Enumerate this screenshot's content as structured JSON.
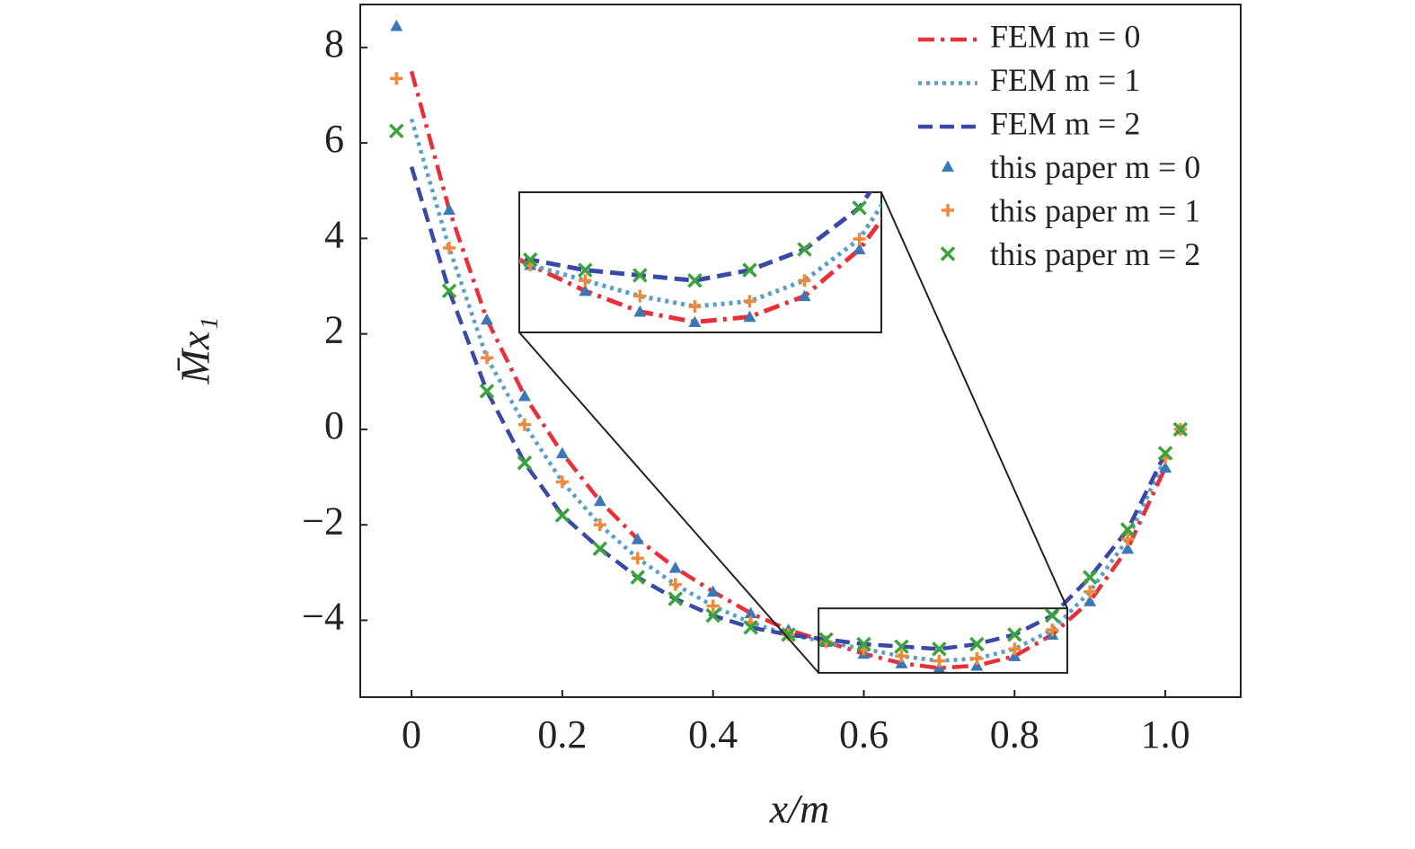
{
  "chart_data": {
    "type": "line",
    "xlabel": "x/m",
    "ylabel": "M̄x₁",
    "xlim": [
      -0.068,
      1.1
    ],
    "ylim": [
      -5.61,
      8.9
    ],
    "xticks": [
      0,
      0.2,
      0.4,
      0.6,
      0.8,
      {
        "value": 1,
        "label": "1.0"
      }
    ],
    "yticks": [
      {
        "value": -4,
        "label": "−4"
      },
      {
        "value": -2,
        "label": "−2"
      },
      0,
      2,
      4,
      6,
      8
    ],
    "legend": "upper right",
    "inset": {
      "xlim": [
        0.54,
        0.87
      ],
      "ylim": [
        -5.1,
        -3.75
      ]
    },
    "series": [
      {
        "name": "FEM m = 0",
        "color": "#e8303a",
        "style": "dashdot",
        "x": [
          0,
          0.05,
          0.1,
          0.15,
          0.2,
          0.25,
          0.3,
          0.35,
          0.4,
          0.45,
          0.5,
          0.55,
          0.6,
          0.65,
          0.7,
          0.75,
          0.8,
          0.85,
          0.9,
          0.95,
          1.0
        ],
        "values": [
          7.5,
          4.6,
          2.3,
          0.7,
          -0.5,
          -1.5,
          -2.3,
          -2.9,
          -3.4,
          -3.85,
          -4.2,
          -4.45,
          -4.7,
          -4.9,
          -5.0,
          -4.95,
          -4.75,
          -4.3,
          -3.6,
          -2.5,
          -0.8
        ]
      },
      {
        "name": "FEM m = 1",
        "color": "#5a9fc8",
        "style": "dotted",
        "x": [
          0,
          0.05,
          0.1,
          0.15,
          0.2,
          0.25,
          0.3,
          0.35,
          0.4,
          0.45,
          0.5,
          0.55,
          0.6,
          0.65,
          0.7,
          0.75,
          0.8,
          0.85,
          0.9,
          0.95,
          1.0
        ],
        "values": [
          6.5,
          3.8,
          1.5,
          0.1,
          -1.1,
          -2.0,
          -2.7,
          -3.25,
          -3.7,
          -4.05,
          -4.3,
          -4.45,
          -4.6,
          -4.75,
          -4.85,
          -4.8,
          -4.6,
          -4.2,
          -3.4,
          -2.3,
          -0.6
        ]
      },
      {
        "name": "FEM m = 2",
        "color": "#3a48a8",
        "style": "dashed",
        "x": [
          0,
          0.05,
          0.1,
          0.15,
          0.2,
          0.25,
          0.3,
          0.35,
          0.4,
          0.45,
          0.5,
          0.55,
          0.6,
          0.65,
          0.7,
          0.75,
          0.8,
          0.85,
          0.9,
          0.95,
          1.0
        ],
        "values": [
          5.5,
          2.9,
          0.8,
          -0.7,
          -1.8,
          -2.5,
          -3.1,
          -3.55,
          -3.9,
          -4.15,
          -4.3,
          -4.4,
          -4.5,
          -4.55,
          -4.6,
          -4.5,
          -4.3,
          -3.9,
          -3.1,
          -2.1,
          -0.5
        ]
      },
      {
        "name": "this paper m = 0",
        "color": "#3b78b5",
        "marker": "triangle",
        "x": [
          -0.02,
          0.05,
          0.1,
          0.15,
          0.2,
          0.25,
          0.3,
          0.35,
          0.4,
          0.45,
          0.5,
          0.55,
          0.6,
          0.65,
          0.7,
          0.75,
          0.8,
          0.85,
          0.9,
          0.95,
          1.0,
          1.02
        ],
        "values": [
          8.45,
          4.6,
          2.3,
          0.7,
          -0.5,
          -1.5,
          -2.3,
          -2.9,
          -3.4,
          -3.85,
          -4.2,
          -4.45,
          -4.7,
          -4.9,
          -5.0,
          -4.95,
          -4.75,
          -4.3,
          -3.6,
          -2.5,
          -0.8,
          0
        ]
      },
      {
        "name": "this paper m = 1",
        "color": "#f08a3a",
        "marker": "plus",
        "x": [
          -0.02,
          0.05,
          0.1,
          0.15,
          0.2,
          0.25,
          0.3,
          0.35,
          0.4,
          0.45,
          0.5,
          0.55,
          0.6,
          0.65,
          0.7,
          0.75,
          0.8,
          0.85,
          0.9,
          0.95,
          1.0,
          1.02
        ],
        "values": [
          7.35,
          3.8,
          1.5,
          0.1,
          -1.1,
          -2.0,
          -2.7,
          -3.25,
          -3.7,
          -4.05,
          -4.3,
          -4.45,
          -4.6,
          -4.75,
          -4.85,
          -4.8,
          -4.6,
          -4.2,
          -3.4,
          -2.3,
          -0.6,
          0
        ]
      },
      {
        "name": "this paper m = 2",
        "color": "#3aa33a",
        "marker": "cross",
        "x": [
          -0.02,
          0.05,
          0.1,
          0.15,
          0.2,
          0.25,
          0.3,
          0.35,
          0.4,
          0.45,
          0.5,
          0.55,
          0.6,
          0.65,
          0.7,
          0.75,
          0.8,
          0.85,
          0.9,
          0.95,
          1.0,
          1.02
        ],
        "values": [
          6.25,
          2.9,
          0.8,
          -0.7,
          -1.8,
          -2.5,
          -3.1,
          -3.55,
          -3.9,
          -4.15,
          -4.3,
          -4.4,
          -4.5,
          -4.55,
          -4.6,
          -4.5,
          -4.3,
          -3.9,
          -3.1,
          -2.1,
          -0.5,
          0
        ]
      }
    ]
  }
}
